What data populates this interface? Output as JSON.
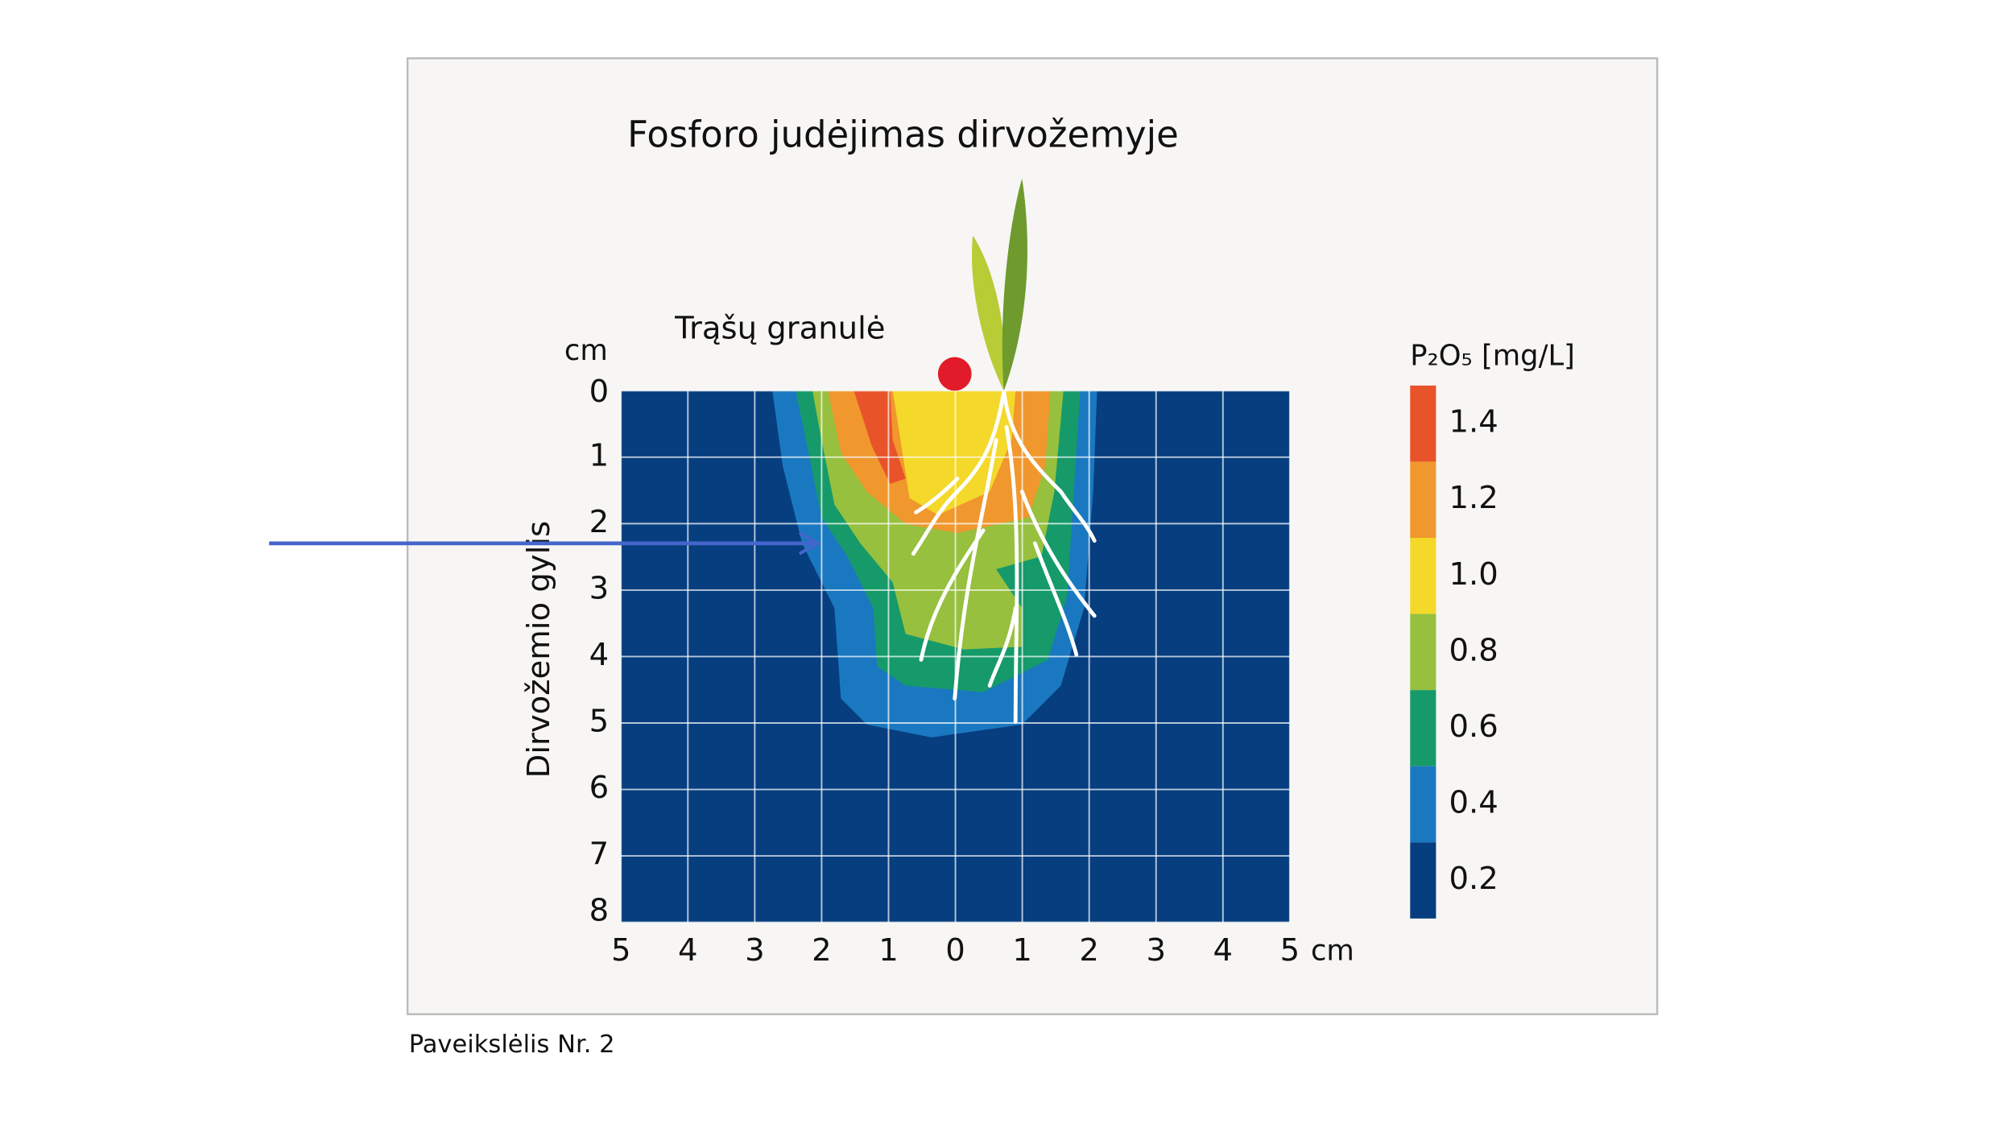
{
  "figure": {
    "title": "Fosforo judėjimas dirvožemyje",
    "granule_label": "Trąšų granulė",
    "y_unit": "cm",
    "x_unit": "cm",
    "y_label": "Dirvožemio gylis",
    "y_ticks": [
      "0",
      "1",
      "2",
      "3",
      "4",
      "5",
      "6",
      "7",
      "8"
    ],
    "x_ticks": [
      "5",
      "4",
      "3",
      "2",
      "1",
      "0",
      "1",
      "2",
      "3",
      "4",
      "5"
    ],
    "legend": {
      "title": "P₂O₅ [mg/L]",
      "levels": [
        {
          "label": "1.4",
          "color": "#e8532a"
        },
        {
          "label": "1.2",
          "color": "#f0972e"
        },
        {
          "label": "1.0",
          "color": "#f4d82a"
        },
        {
          "label": "0.8",
          "color": "#96c03e"
        },
        {
          "label": "0.6",
          "color": "#169a6a"
        },
        {
          "label": "0.4",
          "color": "#1a78c0"
        },
        {
          "label": "0.2",
          "color": "#063e7f"
        }
      ]
    },
    "caption": "Paveikslėlis Nr. 2"
  }
}
